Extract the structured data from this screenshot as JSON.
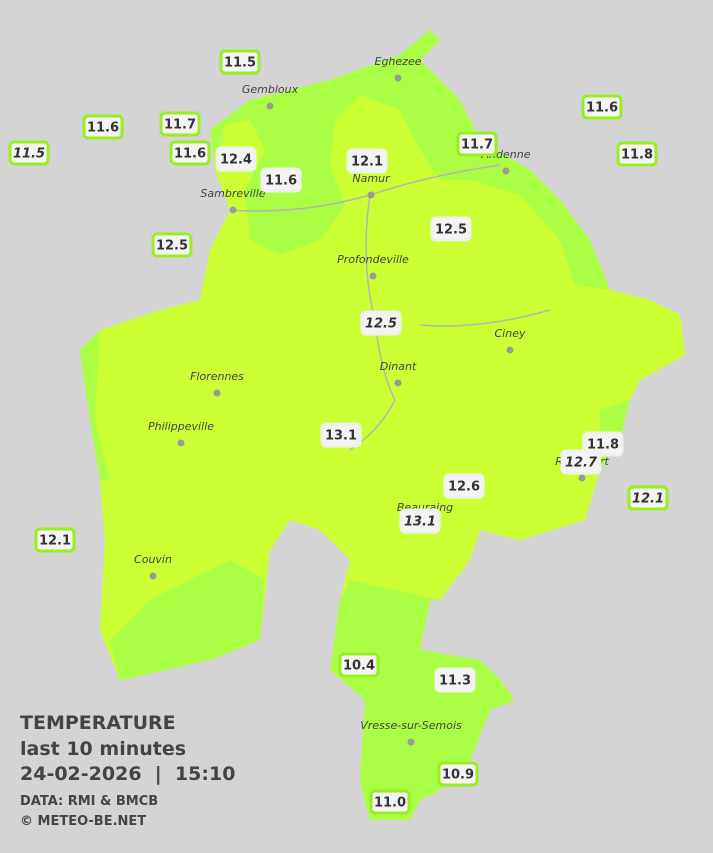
{
  "legend": {
    "title": "TEMPERATURE",
    "period": "last 10 minutes",
    "datetime": "24-02-2026  |  15:10",
    "source": "DATA: RMI & BMCB",
    "credit": "© METEO-BE.NET"
  },
  "cities": [
    "Eghezee",
    "Gembloux",
    "Andenne",
    "Namur",
    "Sambreville",
    "Profondeville",
    "Ciney",
    "Dinant",
    "Florennes",
    "Philippeville",
    "Couvin",
    "Beauraing",
    "Rochefort",
    "Vresse-sur-Semois"
  ],
  "stations": [
    "11.5",
    "11.6",
    "11.7",
    "11.5",
    "11.6",
    "12.4",
    "11.6",
    "12.1",
    "11.7",
    "11.6",
    "11.8",
    "12.5",
    "12.5",
    "12.5",
    "13.1",
    "11.8",
    "12.7",
    "12.1",
    "12.6",
    "13.1",
    "12.1",
    "10.4",
    "11.3",
    "10.9",
    "11.0"
  ]
}
